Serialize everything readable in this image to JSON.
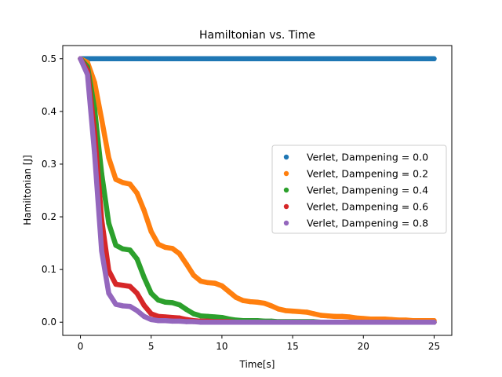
{
  "chart_data": {
    "type": "scatter",
    "title": "Hamiltonian vs. Time",
    "xlabel": "Time[s]",
    "ylabel": "Hamiltonian [J]",
    "xlim": [
      -1.25,
      26.25
    ],
    "ylim": [
      -0.025,
      0.525
    ],
    "xticks": [
      0,
      5,
      10,
      15,
      20,
      25
    ],
    "yticks": [
      0.0,
      0.1,
      0.2,
      0.3,
      0.4,
      0.5
    ],
    "xtick_labels": [
      "0",
      "5",
      "10",
      "15",
      "20",
      "25"
    ],
    "ytick_labels": [
      "0.0",
      "0.1",
      "0.2",
      "0.3",
      "0.4",
      "0.5"
    ],
    "grid": false,
    "legend_position": "center-right",
    "series": [
      {
        "name": "Verlet, Dampening = 0.0",
        "color": "#1f77b4",
        "x": [
          0,
          0.5,
          1,
          1.5,
          2,
          2.5,
          3,
          3.5,
          4,
          4.5,
          5,
          5.5,
          6,
          6.5,
          7,
          7.5,
          8,
          8.5,
          9,
          9.5,
          10,
          10.5,
          11,
          11.5,
          12,
          12.5,
          13,
          13.5,
          14,
          14.5,
          15,
          15.5,
          16,
          16.5,
          17,
          17.5,
          18,
          18.5,
          19,
          19.5,
          20,
          20.5,
          21,
          21.5,
          22,
          22.5,
          23,
          23.5,
          24,
          24.5,
          25
        ],
        "y": [
          0.5,
          0.5,
          0.5,
          0.5,
          0.5,
          0.5,
          0.5,
          0.5,
          0.5,
          0.5,
          0.5,
          0.5,
          0.5,
          0.5,
          0.5,
          0.5,
          0.5,
          0.5,
          0.5,
          0.5,
          0.5,
          0.5,
          0.5,
          0.5,
          0.5,
          0.5,
          0.5,
          0.5,
          0.5,
          0.5,
          0.5,
          0.5,
          0.5,
          0.5,
          0.5,
          0.5,
          0.5,
          0.5,
          0.5,
          0.5,
          0.5,
          0.5,
          0.5,
          0.5,
          0.5,
          0.5,
          0.5,
          0.5,
          0.5,
          0.5,
          0.5
        ]
      },
      {
        "name": "Verlet, Dampening = 0.2",
        "color": "#ff7f0e",
        "x": [
          0,
          0.5,
          1,
          1.5,
          2,
          2.5,
          3,
          3.5,
          4,
          4.5,
          5,
          5.5,
          6,
          6.5,
          7,
          7.5,
          8,
          8.5,
          9,
          9.5,
          10,
          10.5,
          11,
          11.5,
          12,
          12.5,
          13,
          13.5,
          14,
          14.5,
          15,
          15.5,
          16,
          16.5,
          17,
          17.5,
          18,
          18.5,
          19,
          19.5,
          20,
          20.5,
          21,
          21.5,
          22,
          22.5,
          23,
          23.5,
          24,
          24.5,
          25
        ],
        "y": [
          0.5,
          0.493,
          0.455,
          0.385,
          0.312,
          0.271,
          0.265,
          0.262,
          0.245,
          0.212,
          0.172,
          0.148,
          0.142,
          0.14,
          0.13,
          0.11,
          0.089,
          0.078,
          0.075,
          0.074,
          0.069,
          0.058,
          0.047,
          0.041,
          0.039,
          0.038,
          0.036,
          0.031,
          0.025,
          0.022,
          0.021,
          0.02,
          0.019,
          0.016,
          0.013,
          0.012,
          0.011,
          0.011,
          0.01,
          0.008,
          0.007,
          0.006,
          0.006,
          0.006,
          0.005,
          0.004,
          0.004,
          0.003,
          0.003,
          0.003,
          0.003
        ]
      },
      {
        "name": "Verlet, Dampening = 0.4",
        "color": "#2ca02c",
        "x": [
          0,
          0.5,
          1,
          1.5,
          2,
          2.5,
          3,
          3.5,
          4,
          4.5,
          5,
          5.5,
          6,
          6.5,
          7,
          7.5,
          8,
          8.5,
          9,
          9.5,
          10,
          10.5,
          11,
          11.5,
          12,
          12.5,
          13,
          13.5,
          14,
          14.5,
          15,
          15.5,
          16,
          16.5,
          17,
          17.5,
          18,
          18.5,
          19,
          19.5,
          20,
          20.5,
          21,
          21.5,
          22,
          22.5,
          23,
          23.5,
          24,
          24.5,
          25
        ],
        "y": [
          0.5,
          0.485,
          0.405,
          0.282,
          0.188,
          0.146,
          0.139,
          0.137,
          0.12,
          0.085,
          0.055,
          0.042,
          0.038,
          0.037,
          0.033,
          0.024,
          0.016,
          0.012,
          0.011,
          0.01,
          0.009,
          0.006,
          0.004,
          0.003,
          0.003,
          0.003,
          0.002,
          0.002,
          0.001,
          0.001,
          0.001,
          0.001,
          0.001,
          0.001,
          0.0,
          0.0,
          0.0,
          0.0,
          0.0,
          0.0,
          0.0,
          0.0,
          0.0,
          0.0,
          0.0,
          0.0,
          0.0,
          0.0,
          0.0,
          0.0,
          0.0
        ]
      },
      {
        "name": "Verlet, Dampening = 0.6",
        "color": "#d62728",
        "x": [
          0,
          0.5,
          1,
          1.5,
          2,
          2.5,
          3,
          3.5,
          4,
          4.5,
          5,
          5.5,
          6,
          6.5,
          7,
          7.5,
          8,
          8.5,
          9,
          9.5,
          10,
          10.5,
          11,
          11.5,
          12,
          12.5,
          13,
          13.5,
          14,
          14.5,
          15,
          15.5,
          16,
          16.5,
          17,
          17.5,
          18,
          18.5,
          19,
          19.5,
          20,
          20.5,
          21,
          21.5,
          22,
          22.5,
          23,
          23.5,
          24,
          24.5,
          25
        ],
        "y": [
          0.5,
          0.478,
          0.36,
          0.195,
          0.098,
          0.072,
          0.07,
          0.068,
          0.055,
          0.032,
          0.016,
          0.011,
          0.01,
          0.009,
          0.008,
          0.005,
          0.003,
          0.002,
          0.002,
          0.001,
          0.001,
          0.001,
          0.0,
          0.0,
          0.0,
          0.0,
          0.0,
          0.0,
          0.0,
          0.0,
          0.0,
          0.0,
          0.0,
          0.0,
          0.0,
          0.0,
          0.0,
          0.0,
          0.0,
          0.0,
          0.0,
          0.0,
          0.0,
          0.0,
          0.0,
          0.0,
          0.0,
          0.0,
          0.0,
          0.0,
          0.0
        ]
      },
      {
        "name": "Verlet, Dampening = 0.8",
        "color": "#9467bd",
        "x": [
          0,
          0.5,
          1,
          1.5,
          2,
          2.5,
          3,
          3.5,
          4,
          4.5,
          5,
          5.5,
          6,
          6.5,
          7,
          7.5,
          8,
          8.5,
          9,
          9.5,
          10,
          10.5,
          11,
          11.5,
          12,
          12.5,
          13,
          13.5,
          14,
          14.5,
          15,
          15.5,
          16,
          16.5,
          17,
          17.5,
          18,
          18.5,
          19,
          19.5,
          20,
          20.5,
          21,
          21.5,
          22,
          22.5,
          23,
          23.5,
          24,
          24.5,
          25
        ],
        "y": [
          0.5,
          0.47,
          0.32,
          0.135,
          0.055,
          0.034,
          0.031,
          0.03,
          0.022,
          0.011,
          0.005,
          0.003,
          0.003,
          0.002,
          0.002,
          0.001,
          0.001,
          0.0,
          0.0,
          0.0,
          0.0,
          0.0,
          0.0,
          0.0,
          0.0,
          0.0,
          0.0,
          0.0,
          0.0,
          0.0,
          0.0,
          0.0,
          0.0,
          0.0,
          0.0,
          0.0,
          0.0,
          0.0,
          0.0,
          0.0,
          0.0,
          0.0,
          0.0,
          0.0,
          0.0,
          0.0,
          0.0,
          0.0,
          0.0,
          0.0,
          0.0
        ]
      }
    ]
  }
}
